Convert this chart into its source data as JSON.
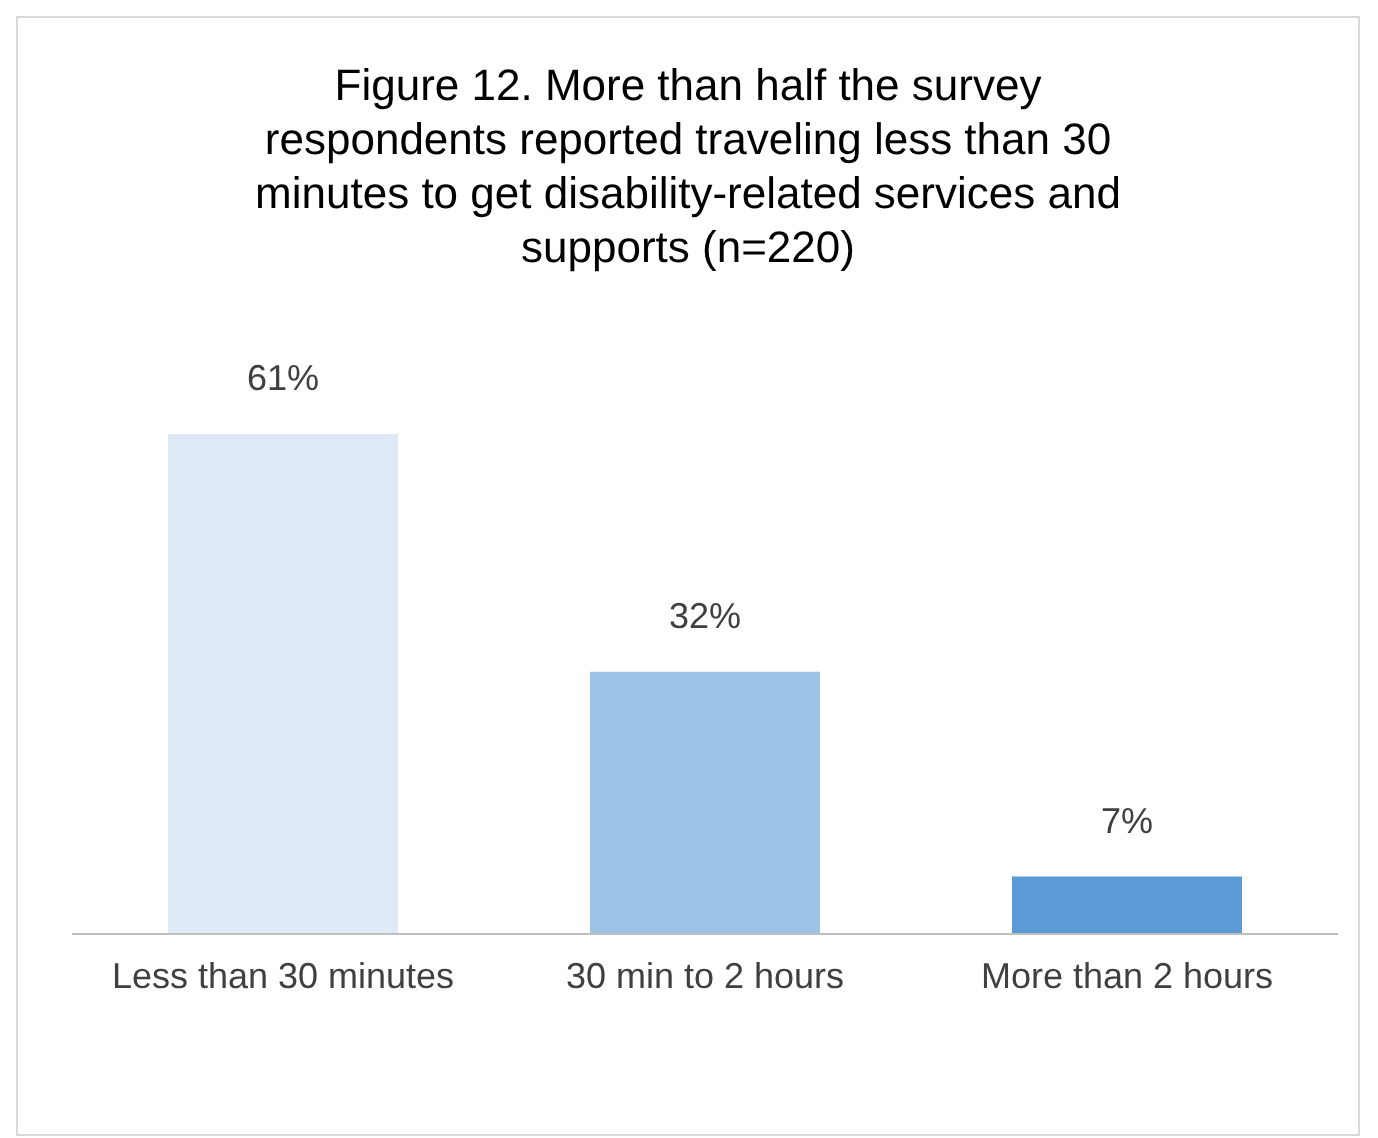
{
  "chart_data": {
    "type": "bar",
    "title": "Figure 12. More than half the survey respondents reported traveling less than 30 minutes to get disability-related services and supports (n=220)",
    "categories": [
      "Less than 30 minutes",
      "30 min to 2 hours",
      "More than 2 hours"
    ],
    "values": [
      61,
      32,
      7
    ],
    "colors": [
      "#deeaf6",
      "#9dc3e6",
      "#5b9bd5"
    ],
    "value_labels": [
      "61%",
      "32%",
      "7%"
    ]
  }
}
